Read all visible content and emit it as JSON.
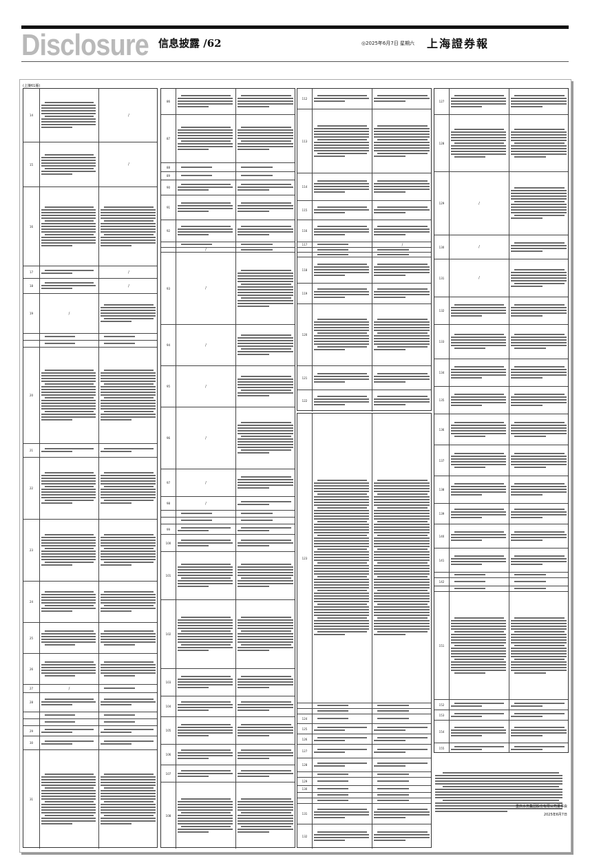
{
  "header": {
    "brand": "Disclosure",
    "section": "信息披露 /62",
    "date": "◎2025年6月7日 星期六",
    "masthead": "上海證券報"
  },
  "continued_from": "(上接61版)",
  "columns": [
    {
      "rows": [
        {
          "num": "14",
          "new": "/"
        },
        {
          "num": "15",
          "new": "/"
        },
        {
          "num": "16"
        },
        {
          "num": "17",
          "new": "/"
        },
        {
          "num": "18",
          "new": "/"
        },
        {
          "num": "19",
          "old": "/"
        },
        {
          "num": ""
        },
        {
          "num": ""
        },
        {
          "num": "20"
        },
        {
          "num": "21"
        },
        {
          "num": "22"
        },
        {
          "num": "23"
        },
        {
          "num": "24"
        },
        {
          "num": "25"
        },
        {
          "num": "26"
        },
        {
          "num": "27",
          "old": "/"
        },
        {
          "num": "28"
        },
        {
          "num": ""
        },
        {
          "num": ""
        },
        {
          "num": "29"
        },
        {
          "num": "30"
        },
        {
          "num": "31"
        }
      ]
    },
    {
      "rows": [
        {
          "num": "86"
        },
        {
          "num": "87"
        },
        {
          "num": "88"
        },
        {
          "num": "89"
        },
        {
          "num": "90"
        },
        {
          "num": "91"
        },
        {
          "num": "92"
        },
        {
          "num": ""
        },
        {
          "num": "",
          "old": "/"
        },
        {
          "num": "93",
          "old": "/"
        },
        {
          "num": "94",
          "old": "/"
        },
        {
          "num": "95",
          "old": "/"
        },
        {
          "num": "96",
          "old": "/"
        },
        {
          "num": "97",
          "old": "/"
        },
        {
          "num": "98",
          "old": "/"
        },
        {
          "num": ""
        },
        {
          "num": ""
        },
        {
          "num": "99"
        },
        {
          "num": "100"
        },
        {
          "num": "101"
        },
        {
          "num": "102"
        },
        {
          "num": "103"
        },
        {
          "num": "104"
        },
        {
          "num": "105"
        },
        {
          "num": "106"
        },
        {
          "num": "107"
        },
        {
          "num": "108"
        }
      ]
    },
    {
      "rows": [
        {
          "num": "112"
        },
        {
          "num": "113"
        },
        {
          "num": "114"
        },
        {
          "num": "115"
        },
        {
          "num": "116"
        },
        {
          "num": "117",
          "new": "/"
        },
        {
          "num": ""
        },
        {
          "num": ""
        },
        {
          "num": "118"
        },
        {
          "num": "119"
        },
        {
          "num": "120"
        },
        {
          "num": "121"
        },
        {
          "num": "122"
        }
      ],
      "rows2": [
        {
          "num": "123"
        },
        {
          "num": ""
        },
        {
          "num": ""
        },
        {
          "num": "124"
        },
        {
          "num": "125"
        },
        {
          "num": "126"
        },
        {
          "num": "127"
        },
        {
          "num": "128"
        },
        {
          "num": ""
        },
        {
          "num": "129"
        },
        {
          "num": "130"
        },
        {
          "num": ""
        },
        {
          "num": ""
        },
        {
          "num": "131"
        },
        {
          "num": "132"
        }
      ]
    },
    {
      "rows": [
        {
          "num": "127"
        },
        {
          "num": "128"
        },
        {
          "num": "129",
          "old": "/"
        },
        {
          "num": "130",
          "old": "/"
        },
        {
          "num": "131",
          "old": "/"
        },
        {
          "num": "132"
        },
        {
          "num": "133"
        },
        {
          "num": "134"
        },
        {
          "num": "135"
        },
        {
          "num": "136"
        },
        {
          "num": "137"
        },
        {
          "num": "138"
        },
        {
          "num": "139"
        },
        {
          "num": "140"
        },
        {
          "num": "141"
        },
        {
          "num": ""
        },
        {
          "num": "142"
        },
        {
          "num": ""
        },
        {
          "num": "151"
        },
        {
          "num": "152"
        },
        {
          "num": "153"
        },
        {
          "num": "154"
        },
        {
          "num": "155"
        }
      ]
    }
  ],
  "signature": {
    "company": "重庆水务集团股份有限公司董事会",
    "date": "2025年6月7日"
  }
}
